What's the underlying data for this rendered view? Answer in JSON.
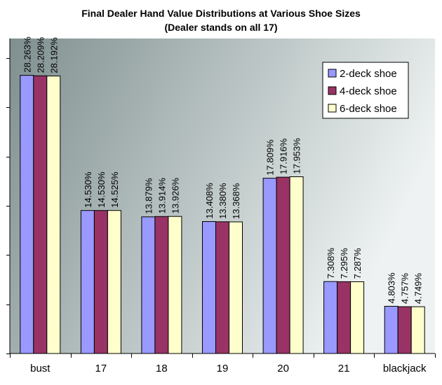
{
  "chart_data": {
    "type": "bar",
    "title": "Final Dealer Hand Value Distributions at Various Shoe Sizes",
    "subtitle": "(Dealer stands on all 17)",
    "xlabel": "",
    "ylabel": "",
    "ylim": [
      0,
      0.32
    ],
    "y_tick_step": 0.05,
    "y_tick_labels_visible": false,
    "grid": false,
    "legend_position": "top-right",
    "categories": [
      "bust",
      "17",
      "18",
      "19",
      "20",
      "21",
      "blackjack"
    ],
    "series": [
      {
        "name": "2-deck shoe",
        "color": "#9999ff",
        "values": [
          28.263,
          14.53,
          13.879,
          13.408,
          17.809,
          7.308,
          4.803
        ],
        "labels": [
          "28.263%",
          "14.530%",
          "13.879%",
          "13.408%",
          "17.809%",
          "7.308%",
          "4.803%"
        ]
      },
      {
        "name": "4-deck shoe",
        "color": "#993366",
        "values": [
          28.209,
          14.53,
          13.914,
          13.38,
          17.916,
          7.295,
          4.757
        ],
        "labels": [
          "28.209%",
          "14.530%",
          "13.914%",
          "13.380%",
          "17.916%",
          "7.295%",
          "4.757%"
        ]
      },
      {
        "name": "6-deck shoe",
        "color": "#ffffcc",
        "values": [
          28.192,
          14.525,
          13.926,
          13.368,
          17.953,
          7.287,
          4.749
        ],
        "labels": [
          "28.192%",
          "14.525%",
          "13.926%",
          "13.368%",
          "17.953%",
          "7.287%",
          "4.749%"
        ]
      }
    ],
    "plot_background_colors": [
      "#7f8f8f",
      "#eef2f2"
    ]
  }
}
